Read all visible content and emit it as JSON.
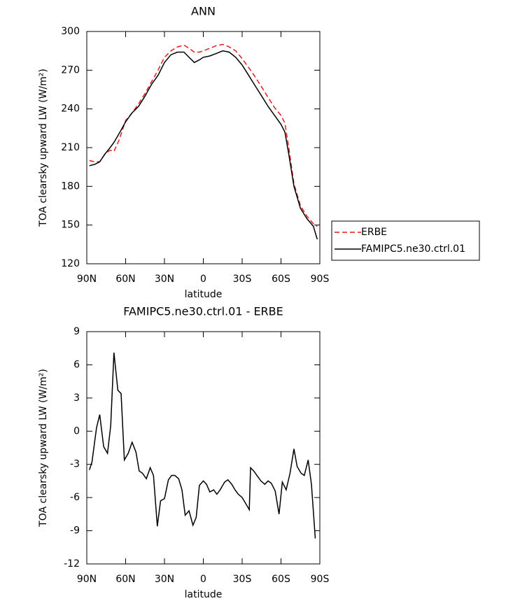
{
  "chart_data": [
    {
      "type": "line",
      "title": "ANN",
      "xlabel": "latitude",
      "ylabel": "TOA clearsky upward LW (W/m²)",
      "xlim": [
        90,
        -90
      ],
      "ylim": [
        120,
        300
      ],
      "xticks": [
        {
          "value": 90,
          "label": "90N"
        },
        {
          "value": 60,
          "label": "60N"
        },
        {
          "value": 30,
          "label": "30N"
        },
        0,
        {
          "value": -30,
          "label": "30S"
        },
        {
          "value": -60,
          "label": "60S"
        },
        {
          "value": -90,
          "label": "90S"
        }
      ],
      "yticks": [
        120,
        150,
        180,
        210,
        240,
        270,
        300
      ],
      "legend": "right",
      "x": [
        88,
        84,
        80,
        76,
        72,
        69,
        65,
        60,
        55,
        50,
        45,
        40,
        35,
        30,
        25,
        20,
        15,
        11,
        7,
        3,
        0,
        -5,
        -10,
        -15,
        -20,
        -25,
        -30,
        -35,
        -40,
        -45,
        -50,
        -55,
        -60,
        -63,
        -66,
        -70,
        -75,
        -80,
        -85,
        -88
      ],
      "series": [
        {
          "name": "ERBE",
          "color": "#e41a1c",
          "dashed": true,
          "values": [
            200,
            199,
            199,
            205,
            208,
            207,
            216,
            231,
            237,
            244,
            252,
            261,
            270,
            280,
            285,
            288,
            289.5,
            287,
            284,
            284,
            285,
            287,
            289,
            290,
            288,
            285,
            279,
            272,
            265,
            257,
            249,
            241,
            235,
            229,
            210,
            182,
            165,
            157,
            151,
            149
          ]
        },
        {
          "name": "FAMIPC5.ne30.ctrl.01",
          "color": "#000000",
          "dashed": false,
          "values": [
            196,
            197,
            199,
            205,
            210,
            214,
            221,
            230,
            237,
            242,
            250,
            259,
            266,
            276,
            282,
            284,
            284,
            280,
            276,
            278,
            280,
            281,
            283,
            285,
            284,
            280,
            274,
            266,
            258,
            250,
            242,
            235,
            228,
            222,
            205,
            180,
            163,
            155,
            149,
            139
          ]
        }
      ]
    },
    {
      "type": "line",
      "title": "FAMIPC5.ne30.ctrl.01 - ERBE",
      "xlabel": "latitude",
      "ylabel": "TOA clearsky upward LW (W/m²)",
      "xlim": [
        90,
        -90
      ],
      "ylim": [
        -12,
        9
      ],
      "xticks": [
        {
          "value": 90,
          "label": "90N"
        },
        {
          "value": 60,
          "label": "60N"
        },
        {
          "value": 30,
          "label": "30N"
        },
        0,
        {
          "value": -30,
          "label": "30S"
        },
        {
          "value": -60,
          "label": "60S"
        },
        {
          "value": -90,
          "label": "90S"
        }
      ],
      "yticks": [
        -12,
        -9,
        -6,
        -3,
        0,
        3,
        6,
        9
      ],
      "color": "#000000",
      "x": [
        88,
        86,
        82.5,
        80,
        77,
        74,
        71.5,
        69,
        66,
        63.5,
        61,
        58,
        55,
        52,
        49.5,
        47,
        44,
        41,
        38.5,
        35.5,
        33,
        30,
        27,
        24.5,
        22,
        19,
        16.5,
        14,
        11,
        8,
        5.5,
        3,
        0,
        -2.5,
        -5,
        -8,
        -10.5,
        -13,
        -16.5,
        -19,
        -22,
        -24.5,
        -27,
        -30,
        -33,
        -35.5,
        -36.5,
        -39,
        -42,
        -44.5,
        -47.5,
        -50,
        -52.5,
        -55.5,
        -58.5,
        -61,
        -64,
        -67,
        -70,
        -72.5,
        -75.5,
        -78,
        -81,
        -83.5,
        -86.5
      ],
      "values": [
        -3.5,
        -2.8,
        0.3,
        1.5,
        -1.4,
        -2.0,
        0.5,
        7.1,
        3.7,
        3.4,
        -2.6,
        -2.0,
        -1.0,
        -1.9,
        -3.6,
        -3.8,
        -4.3,
        -3.3,
        -4.0,
        -8.6,
        -6.3,
        -6.1,
        -4.4,
        -4.0,
        -4.0,
        -4.3,
        -5.3,
        -7.6,
        -7.2,
        -8.5,
        -7.8,
        -4.9,
        -4.5,
        -4.8,
        -5.5,
        -5.3,
        -5.7,
        -5.3,
        -4.6,
        -4.4,
        -4.8,
        -5.3,
        -5.7,
        -6.0,
        -6.6,
        -7.1,
        -3.3,
        -3.6,
        -4.1,
        -4.5,
        -4.8,
        -4.5,
        -4.7,
        -5.4,
        -7.5,
        -4.6,
        -5.3,
        -3.8,
        -1.6,
        -3.2,
        -3.8,
        -4.0,
        -2.6,
        -4.8,
        -9.7
      ]
    }
  ]
}
